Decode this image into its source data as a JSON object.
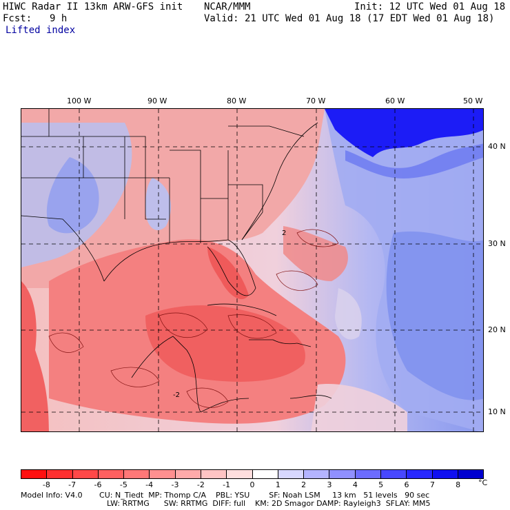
{
  "header": {
    "model_line": "HIWC Radar II 13km ARW-GFS init",
    "org": "NCAR/MMM",
    "init": "Init: 12 UTC Wed 01 Aug 18",
    "fcst_label": "Fcst:",
    "fcst_value": "9 h",
    "valid": "Valid: 21 UTC Wed 01 Aug 18 (17 EDT Wed 01 Aug 18)",
    "field": "Lifted index"
  },
  "map": {
    "lon_labels": [
      "100 W",
      "90 W",
      "80 W",
      "70 W",
      "60 W",
      "50 W"
    ],
    "lat_labels": [
      "40 N",
      "30 N",
      "20 N",
      "10 N"
    ],
    "contour_labels": [
      "2",
      "-2"
    ],
    "colors": {
      "ocean_east": "#8fa0f0",
      "deep_blue": "#1a1aff",
      "warm": "#f08080"
    }
  },
  "colorbar": {
    "labels": [
      "-8",
      "-7",
      "-6",
      "-5",
      "-4",
      "-3",
      "-2",
      "-1",
      "0",
      "1",
      "2",
      "3",
      "4",
      "5",
      "6",
      "7",
      "8"
    ],
    "unit": "°C",
    "colors": [
      "#ff1010",
      "#ff3030",
      "#ff4848",
      "#ff6060",
      "#ff7878",
      "#ff9090",
      "#ffaaaa",
      "#ffc4c4",
      "#ffdede",
      "#ffffff",
      "#d8d8ff",
      "#b4b4ff",
      "#9090ff",
      "#6c6cff",
      "#4848ff",
      "#2828ff",
      "#1010f0",
      "#0000d0"
    ]
  },
  "model_info": {
    "line1": "Model Info: V4.0       CU: N_Tiedt  MP: Thomp C/A    PBL: YSU        SF: Noah LSM     13 km   51 levels   90 sec",
    "line2": "LW: RRTMG      SW: RRTMG  DIFF: full    KM: 2D Smagor DAMP: Rayleigh3  SFLAY: MM5"
  }
}
